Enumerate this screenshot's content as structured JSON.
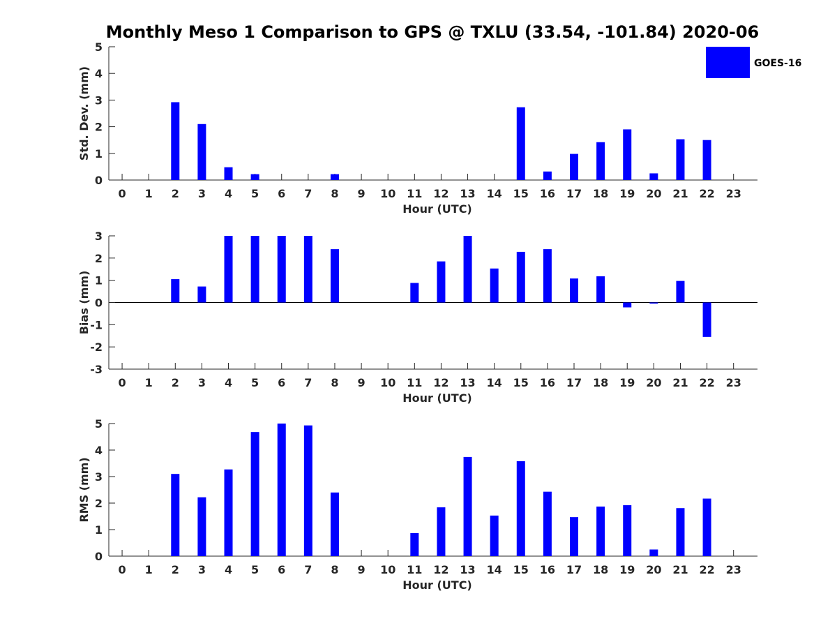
{
  "figure": {
    "title": "Monthly Meso 1 Comparison to GPS @ TXLU (33.54, -101.84) 2020-06"
  },
  "colors": {
    "bar": "#0000ff",
    "axis": "#262626",
    "background": "#ffffff"
  },
  "legend": {
    "label": "GOES-16",
    "placement": "top-right"
  },
  "chart_data": [
    {
      "type": "bar",
      "title": "",
      "xlabel": "Hour (UTC)",
      "ylabel": "Std. Dev. (mm)",
      "ylim": [
        0,
        5
      ],
      "yticks": [
        0,
        1,
        2,
        3,
        4,
        5
      ],
      "categories": [
        "0",
        "1",
        "2",
        "3",
        "4",
        "5",
        "6",
        "7",
        "8",
        "9",
        "10",
        "11",
        "12",
        "13",
        "14",
        "15",
        "16",
        "17",
        "18",
        "19",
        "20",
        "21",
        "22",
        "23"
      ],
      "series": [
        {
          "name": "GOES-16",
          "values": [
            null,
            null,
            2.92,
            2.1,
            0.48,
            0.22,
            null,
            null,
            0.22,
            null,
            null,
            null,
            null,
            null,
            null,
            2.73,
            0.32,
            0.98,
            1.42,
            1.9,
            0.25,
            1.53,
            1.5,
            null
          ]
        }
      ],
      "grid": false
    },
    {
      "type": "bar",
      "title": "",
      "xlabel": "Hour (UTC)",
      "ylabel": "Bias (mm)",
      "ylim": [
        -3,
        3
      ],
      "yticks": [
        -3,
        -2,
        -1,
        0,
        1,
        2,
        3
      ],
      "categories": [
        "0",
        "1",
        "2",
        "3",
        "4",
        "5",
        "6",
        "7",
        "8",
        "9",
        "10",
        "11",
        "12",
        "13",
        "14",
        "15",
        "16",
        "17",
        "18",
        "19",
        "20",
        "21",
        "22",
        "23"
      ],
      "series": [
        {
          "name": "GOES-16",
          "values": [
            null,
            null,
            1.05,
            0.72,
            3.0,
            3.0,
            3.0,
            3.0,
            2.4,
            null,
            null,
            0.88,
            1.85,
            3.0,
            1.53,
            2.28,
            2.4,
            1.08,
            1.18,
            -0.22,
            -0.05,
            0.97,
            -1.55,
            null
          ]
        }
      ],
      "grid": false
    },
    {
      "type": "bar",
      "title": "",
      "xlabel": "Hour (UTC)",
      "ylabel": "RMS (mm)",
      "ylim": [
        0,
        5
      ],
      "yticks": [
        0,
        1,
        2,
        3,
        4,
        5
      ],
      "categories": [
        "0",
        "1",
        "2",
        "3",
        "4",
        "5",
        "6",
        "7",
        "8",
        "9",
        "10",
        "11",
        "12",
        "13",
        "14",
        "15",
        "16",
        "17",
        "18",
        "19",
        "20",
        "21",
        "22",
        "23"
      ],
      "series": [
        {
          "name": "GOES-16",
          "values": [
            null,
            null,
            3.1,
            2.22,
            3.27,
            4.68,
            5.0,
            4.93,
            2.4,
            null,
            null,
            0.87,
            1.84,
            3.74,
            1.53,
            3.58,
            2.43,
            1.47,
            1.87,
            1.92,
            0.25,
            1.81,
            2.17,
            null
          ]
        }
      ],
      "grid": false
    }
  ]
}
